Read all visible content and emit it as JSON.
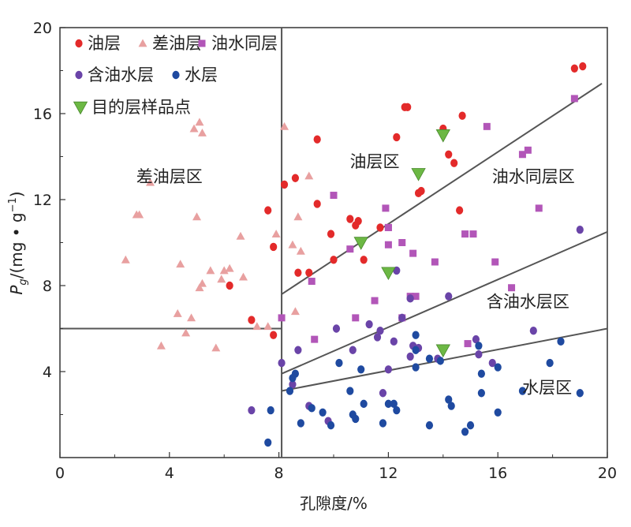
{
  "chart_data": {
    "type": "scatter",
    "title": "",
    "xlabel": "孔隙度/%",
    "ylabel": {
      "main": "P",
      "sub": "g",
      "rest": "/(mg • g",
      "sup": "−1",
      "close": ")"
    },
    "xlim": [
      0,
      20
    ],
    "ylim": [
      0,
      20
    ],
    "xticks": [
      0,
      4,
      8,
      12,
      16,
      20
    ],
    "yticks": [
      4,
      8,
      12,
      16,
      20
    ],
    "grid": false,
    "legend": {
      "placement": "top-left"
    },
    "colors": {
      "oil": "#e32a2a",
      "poor_oil": "#e8a0a0",
      "oil_water": "#b256b8",
      "oil_bearing_water": "#6a44a8",
      "water": "#1f4aa0",
      "target": "#6cb844",
      "line": "#555555"
    },
    "series": [
      {
        "key": "oil",
        "name": "油层",
        "marker": "circle",
        "color": "#e32a2a",
        "points": [
          [
            7.6,
            11.5
          ],
          [
            7.8,
            9.8
          ],
          [
            7.0,
            6.4
          ],
          [
            6.2,
            8.0
          ],
          [
            8.2,
            12.7
          ],
          [
            8.6,
            13.0
          ],
          [
            9.4,
            14.8
          ],
          [
            8.7,
            8.6
          ],
          [
            9.1,
            8.6
          ],
          [
            9.4,
            11.8
          ],
          [
            9.9,
            10.4
          ],
          [
            10.0,
            9.2
          ],
          [
            10.6,
            11.1
          ],
          [
            10.9,
            11.0
          ],
          [
            10.8,
            10.8
          ],
          [
            11.1,
            9.2
          ],
          [
            11.7,
            10.7
          ],
          [
            12.3,
            14.9
          ],
          [
            12.7,
            16.3
          ],
          [
            12.6,
            16.3
          ],
          [
            13.1,
            12.3
          ],
          [
            13.2,
            12.4
          ],
          [
            14.0,
            15.3
          ],
          [
            14.2,
            14.1
          ],
          [
            14.4,
            13.7
          ],
          [
            14.6,
            11.5
          ],
          [
            14.7,
            15.9
          ],
          [
            18.8,
            18.1
          ],
          [
            19.1,
            18.2
          ],
          [
            7.8,
            5.7
          ]
        ]
      },
      {
        "key": "poor_oil",
        "name": "差油层",
        "marker": "triangle",
        "color": "#e8a0a0",
        "points": [
          [
            2.4,
            9.2
          ],
          [
            2.8,
            11.3
          ],
          [
            2.9,
            11.3
          ],
          [
            3.3,
            12.8
          ],
          [
            3.7,
            5.2
          ],
          [
            4.3,
            6.7
          ],
          [
            4.4,
            9.0
          ],
          [
            4.6,
            5.8
          ],
          [
            4.8,
            6.5
          ],
          [
            4.9,
            15.3
          ],
          [
            5.1,
            15.6
          ],
          [
            5.2,
            15.1
          ],
          [
            5.0,
            11.2
          ],
          [
            5.1,
            7.9
          ],
          [
            5.2,
            8.1
          ],
          [
            5.5,
            8.7
          ],
          [
            5.7,
            5.1
          ],
          [
            5.9,
            8.3
          ],
          [
            6.0,
            8.7
          ],
          [
            6.2,
            8.8
          ],
          [
            6.6,
            10.3
          ],
          [
            6.7,
            8.4
          ],
          [
            7.2,
            6.1
          ],
          [
            7.9,
            10.4
          ],
          [
            8.2,
            15.4
          ],
          [
            8.7,
            11.2
          ],
          [
            8.6,
            6.8
          ],
          [
            8.8,
            9.6
          ],
          [
            9.1,
            13.1
          ],
          [
            8.5,
            9.9
          ],
          [
            7.6,
            6.1
          ]
        ]
      },
      {
        "key": "oil_water",
        "name": "油水同层",
        "marker": "square",
        "color": "#b256b8",
        "points": [
          [
            8.1,
            6.5
          ],
          [
            9.2,
            8.2
          ],
          [
            9.3,
            5.5
          ],
          [
            10.0,
            12.2
          ],
          [
            10.6,
            9.7
          ],
          [
            10.8,
            6.5
          ],
          [
            11.5,
            7.3
          ],
          [
            11.9,
            11.6
          ],
          [
            12.0,
            10.7
          ],
          [
            12.0,
            9.9
          ],
          [
            12.5,
            10.0
          ],
          [
            12.5,
            6.5
          ],
          [
            12.9,
            9.5
          ],
          [
            13.0,
            7.5
          ],
          [
            13.7,
            9.1
          ],
          [
            14.8,
            10.4
          ],
          [
            15.1,
            10.4
          ],
          [
            15.6,
            15.4
          ],
          [
            15.9,
            9.1
          ],
          [
            16.5,
            7.9
          ],
          [
            16.9,
            14.1
          ],
          [
            17.1,
            14.3
          ],
          [
            17.5,
            11.6
          ],
          [
            18.8,
            16.7
          ],
          [
            14.9,
            5.3
          ],
          [
            12.0,
            10.7
          ],
          [
            12.8,
            7.5
          ]
        ]
      },
      {
        "key": "oil_bearing_water",
        "name": "含油水层",
        "marker": "circle",
        "color": "#6a44a8",
        "points": [
          [
            7.0,
            2.2
          ],
          [
            8.1,
            4.4
          ],
          [
            8.5,
            3.4
          ],
          [
            8.7,
            5.0
          ],
          [
            9.1,
            2.4
          ],
          [
            9.8,
            1.7
          ],
          [
            10.1,
            6.0
          ],
          [
            10.7,
            5.0
          ],
          [
            11.3,
            6.2
          ],
          [
            11.6,
            5.6
          ],
          [
            11.7,
            5.9
          ],
          [
            11.8,
            3.0
          ],
          [
            12.0,
            4.1
          ],
          [
            12.2,
            5.4
          ],
          [
            12.3,
            8.7
          ],
          [
            12.5,
            6.5
          ],
          [
            12.8,
            4.7
          ],
          [
            12.8,
            7.4
          ],
          [
            13.1,
            5.1
          ],
          [
            13.8,
            4.6
          ],
          [
            14.2,
            7.5
          ],
          [
            15.2,
            5.5
          ],
          [
            15.3,
            4.8
          ],
          [
            15.8,
            4.4
          ],
          [
            17.3,
            5.9
          ],
          [
            19.0,
            10.6
          ],
          [
            12.9,
            5.2
          ]
        ]
      },
      {
        "key": "water",
        "name": "水层",
        "marker": "circle",
        "color": "#1f4aa0",
        "points": [
          [
            7.6,
            0.7
          ],
          [
            7.7,
            2.2
          ],
          [
            8.4,
            3.1
          ],
          [
            8.5,
            3.7
          ],
          [
            8.6,
            3.9
          ],
          [
            8.8,
            1.6
          ],
          [
            9.2,
            2.3
          ],
          [
            9.6,
            2.1
          ],
          [
            9.9,
            1.5
          ],
          [
            10.2,
            4.4
          ],
          [
            10.6,
            3.1
          ],
          [
            10.7,
            2.0
          ],
          [
            10.8,
            1.8
          ],
          [
            11.0,
            4.1
          ],
          [
            11.1,
            2.5
          ],
          [
            11.8,
            1.6
          ],
          [
            12.0,
            2.5
          ],
          [
            12.2,
            2.5
          ],
          [
            12.3,
            2.2
          ],
          [
            13.0,
            5.0
          ],
          [
            13.0,
            4.2
          ],
          [
            13.0,
            5.7
          ],
          [
            13.5,
            1.5
          ],
          [
            13.9,
            4.5
          ],
          [
            14.2,
            2.7
          ],
          [
            14.3,
            2.4
          ],
          [
            14.8,
            1.2
          ],
          [
            15.0,
            1.5
          ],
          [
            15.3,
            5.2
          ],
          [
            15.4,
            3.0
          ],
          [
            15.4,
            3.9
          ],
          [
            16.0,
            2.1
          ],
          [
            16.0,
            4.2
          ],
          [
            16.9,
            3.1
          ],
          [
            17.9,
            4.4
          ],
          [
            18.3,
            5.4
          ],
          [
            19.0,
            3.0
          ],
          [
            13.5,
            4.6
          ]
        ]
      },
      {
        "key": "target",
        "name": "目的层样品点",
        "marker": "triangle-down",
        "color": "#6cb844",
        "points": [
          [
            14.0,
            15.0
          ],
          [
            13.1,
            13.2
          ],
          [
            11.0,
            10.0
          ],
          [
            12.0,
            8.6
          ],
          [
            14.0,
            5.0
          ]
        ]
      }
    ],
    "lines": [
      {
        "from": [
          0,
          6.0
        ],
        "to": [
          8.1,
          6.0
        ]
      },
      {
        "from": [
          8.1,
          0
        ],
        "to": [
          8.1,
          20
        ]
      },
      {
        "from": [
          8.1,
          7.6
        ],
        "to": [
          19.8,
          17.4
        ]
      },
      {
        "from": [
          8.1,
          3.9
        ],
        "to": [
          20.0,
          10.5
        ]
      },
      {
        "from": [
          8.1,
          3.1
        ],
        "to": [
          20.0,
          6.0
        ]
      }
    ],
    "regions": [
      {
        "label": "差油层区",
        "x": 4.0,
        "y": 12.8
      },
      {
        "label": "油层区",
        "x": 11.5,
        "y": 13.5
      },
      {
        "label": "油水同层区",
        "x": 17.3,
        "y": 12.8
      },
      {
        "label": "含油水层区",
        "x": 17.1,
        "y": 7.0
      },
      {
        "label": "水层区",
        "x": 17.8,
        "y": 3.0
      }
    ]
  }
}
